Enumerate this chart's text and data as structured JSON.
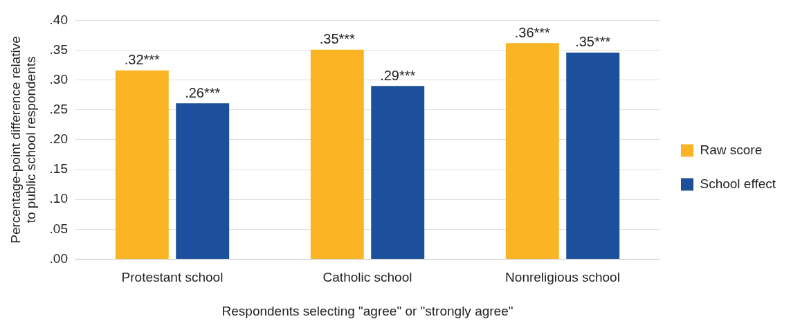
{
  "chart_data": {
    "type": "bar",
    "xlabel": "Respondents selecting \"agree\" or \"strongly agree\"",
    "ylabel": "Percentage-point difference relative to public school respondents",
    "categories": [
      "Protestant school",
      "Catholic school",
      "Nonreligious school"
    ],
    "series": [
      {
        "name": "Raw score",
        "color": "#fbb424",
        "values": [
          0.316,
          0.351,
          0.362
        ],
        "value_labels": [
          ".32***",
          ".35***",
          ".36***"
        ]
      },
      {
        "name": "School effect",
        "color": "#1c4f9c",
        "values": [
          0.261,
          0.29,
          0.346
        ],
        "value_labels": [
          ".26***",
          ".29***",
          ".35***"
        ]
      }
    ],
    "ylim": [
      0,
      0.4
    ],
    "yticks": [
      {
        "value": 0,
        "label": ".00"
      },
      {
        "value": 0.05,
        "label": ".05"
      },
      {
        "value": 0.1,
        "label": ".10"
      },
      {
        "value": 0.15,
        "label": ".15"
      },
      {
        "value": 0.2,
        "label": ".20"
      },
      {
        "value": 0.25,
        "label": ".25"
      },
      {
        "value": 0.3,
        "label": ".30"
      },
      {
        "value": 0.35,
        "label": ".35"
      },
      {
        "value": 0.4,
        "label": ".40"
      }
    ],
    "grid": "y",
    "legend": "right"
  }
}
